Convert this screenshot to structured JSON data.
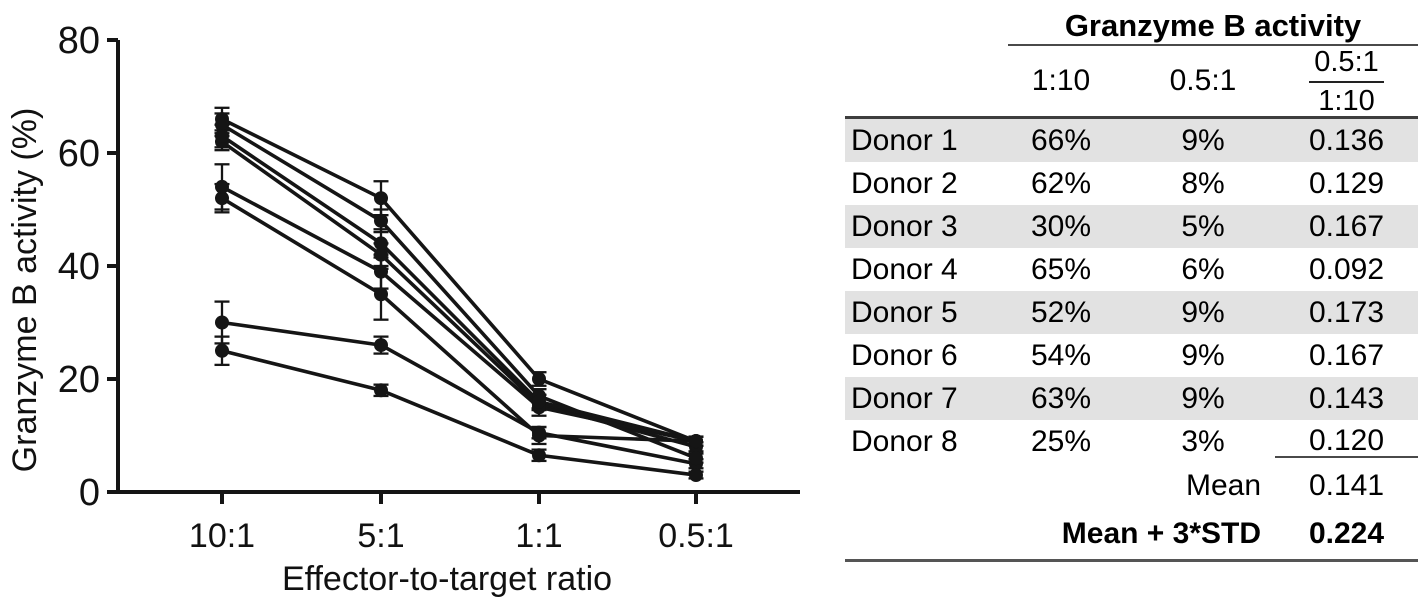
{
  "chart_data": {
    "type": "line",
    "title": "",
    "xlabel": "Effector-to-target ratio",
    "ylabel": "Granzyme B activity (%)",
    "categories": [
      "10:1",
      "5:1",
      "1:1",
      "0.5:1"
    ],
    "ylim": [
      0,
      80
    ],
    "yticks": [
      0,
      20,
      40,
      60,
      80
    ],
    "grid": false,
    "legend_position": "none",
    "marker": "filled-circle",
    "line_color": "#151515",
    "series": [
      {
        "name": "Donor 1",
        "values": [
          66,
          52,
          20,
          9
        ],
        "errors": [
          2,
          3,
          1.2,
          0.8
        ]
      },
      {
        "name": "Donor 2",
        "values": [
          62,
          42,
          15.5,
          8
        ],
        "errors": [
          1.5,
          2,
          1,
          0.8
        ]
      },
      {
        "name": "Donor 3",
        "values": [
          30,
          26,
          10.5,
          5
        ],
        "errors": [
          3.7,
          1.5,
          1,
          0.8
        ]
      },
      {
        "name": "Donor 4",
        "values": [
          65,
          48,
          17,
          6
        ],
        "errors": [
          2,
          2,
          1.2,
          0.8
        ]
      },
      {
        "name": "Donor 5",
        "values": [
          52,
          35,
          10,
          9
        ],
        "errors": [
          2.5,
          4.5,
          1.5,
          0.8
        ]
      },
      {
        "name": "Donor 6",
        "values": [
          54,
          39,
          15,
          9
        ],
        "errors": [
          4,
          3,
          1.5,
          0.8
        ]
      },
      {
        "name": "Donor 7",
        "values": [
          63,
          44,
          16,
          9
        ],
        "errors": [
          2,
          2.5,
          1.2,
          0.8
        ]
      },
      {
        "name": "Donor 8",
        "values": [
          25,
          18,
          6.5,
          3
        ],
        "errors": [
          2.5,
          1,
          1,
          0.6
        ]
      }
    ]
  },
  "table": {
    "title": "Granzyme B activity",
    "col_headers": [
      "1:10",
      "0.5:1"
    ],
    "ratio_header": {
      "numerator": "0.5:1",
      "denominator": "1:10"
    },
    "rows": [
      {
        "donor": "Donor 1",
        "pct_1_10": "66%",
        "pct_0_5_1": "9%",
        "ratio": "0.136"
      },
      {
        "donor": "Donor 2",
        "pct_1_10": "62%",
        "pct_0_5_1": "8%",
        "ratio": "0.129"
      },
      {
        "donor": "Donor 3",
        "pct_1_10": "30%",
        "pct_0_5_1": "5%",
        "ratio": "0.167"
      },
      {
        "donor": "Donor 4",
        "pct_1_10": "65%",
        "pct_0_5_1": "6%",
        "ratio": "0.092"
      },
      {
        "donor": "Donor 5",
        "pct_1_10": "52%",
        "pct_0_5_1": "9%",
        "ratio": "0.173"
      },
      {
        "donor": "Donor 6",
        "pct_1_10": "54%",
        "pct_0_5_1": "9%",
        "ratio": "0.167"
      },
      {
        "donor": "Donor 7",
        "pct_1_10": "63%",
        "pct_0_5_1": "9%",
        "ratio": "0.143"
      },
      {
        "donor": "Donor 8",
        "pct_1_10": "25%",
        "pct_0_5_1": "3%",
        "ratio": "0.120"
      }
    ],
    "summary": [
      {
        "label": "Mean",
        "value": "0.141"
      },
      {
        "label": "Mean + 3*STD",
        "value": "0.224"
      }
    ],
    "shade_color": "#e2e2e2",
    "rule_color": "#4a4a4a"
  }
}
